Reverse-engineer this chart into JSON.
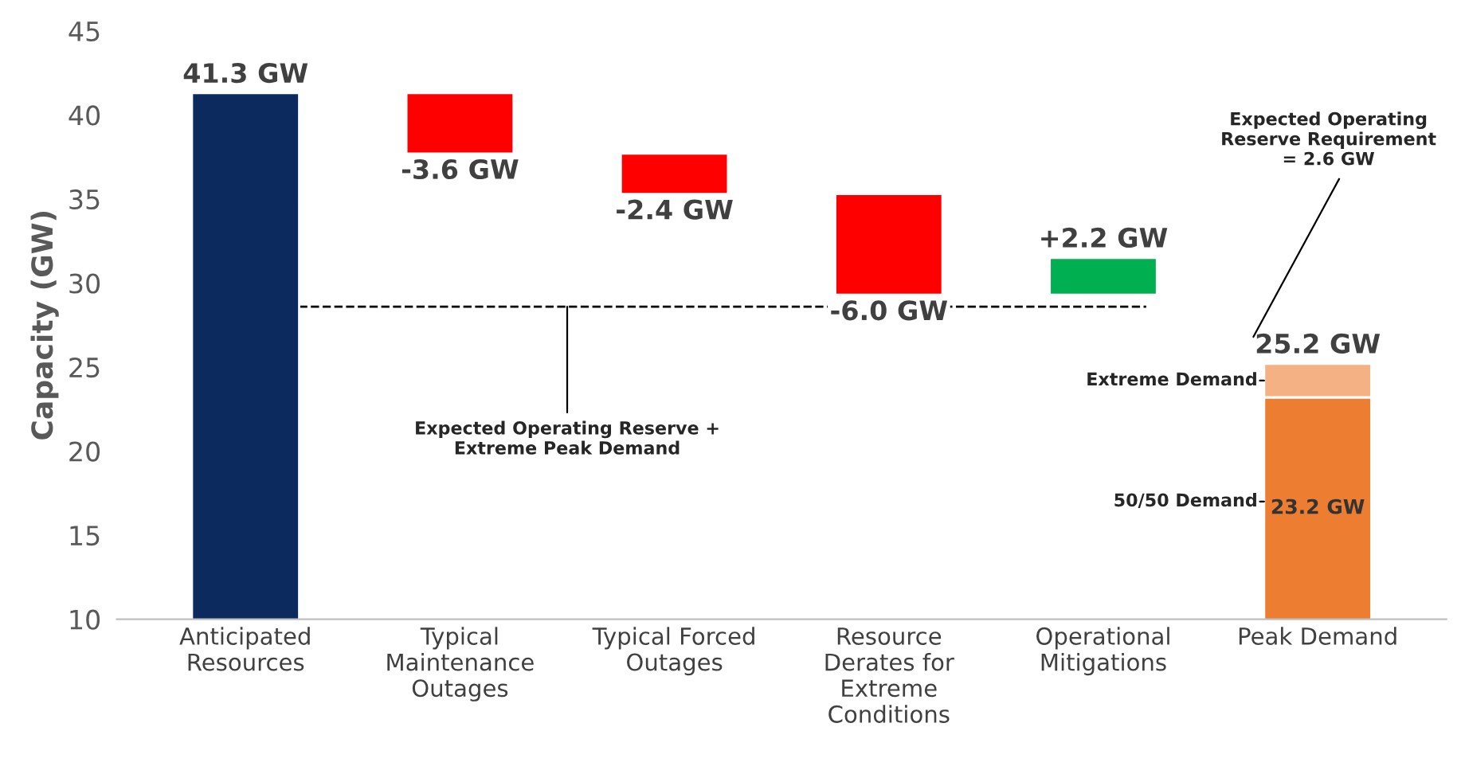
{
  "chart_data": {
    "type": "bar",
    "ylabel": "Capacity (GW)",
    "categories": [
      "Anticipated\nResources",
      "Typical\nMaintenance\nOutages",
      "Typical Forced\nOutages",
      "Resource\nDerates for\nExtreme\nConditions",
      "Operational\nMitigations",
      "Peak Demand"
    ],
    "series": [
      {
        "colors": [
          "#0d2a5e",
          "#ff0000",
          "#ff0000",
          "#ff0000",
          "#00b050",
          "#ed7d31"
        ],
        "values": [
          41.3,
          -3.6,
          -2.4,
          -6.0,
          2.2,
          23.2
        ],
        "base": [
          0,
          41.3,
          37.7,
          35.3,
          29.3,
          0
        ],
        "value_labels": [
          "41.3 GW",
          "-3.6 GW",
          "-2.4 GW",
          "-6.0 GW",
          "+2.2 GW",
          "23.2 GW"
        ]
      },
      {
        "color": "#f4b183",
        "values": [
          null,
          null,
          null,
          null,
          null,
          2.0
        ],
        "base": [
          null,
          null,
          null,
          null,
          null,
          23.2
        ]
      }
    ],
    "totals": [
      null,
      null,
      null,
      null,
      null,
      "25.2 GW"
    ],
    "ylim": [
      10,
      45
    ],
    "yticks": [
      10,
      15,
      20,
      25,
      30,
      35,
      40,
      45
    ],
    "grid": false,
    "ref_lines": [
      {
        "axis": "y",
        "value": 28.6,
        "label": "Expected Operating Reserve +\nExtreme Peak Demand",
        "line_style": "dashed",
        "color": "#000000"
      }
    ],
    "annotations": [
      "Expected Operating\nReserve Requirement\n= 2.6 GW",
      "Extreme Demand",
      "50/50 Demand"
    ]
  }
}
